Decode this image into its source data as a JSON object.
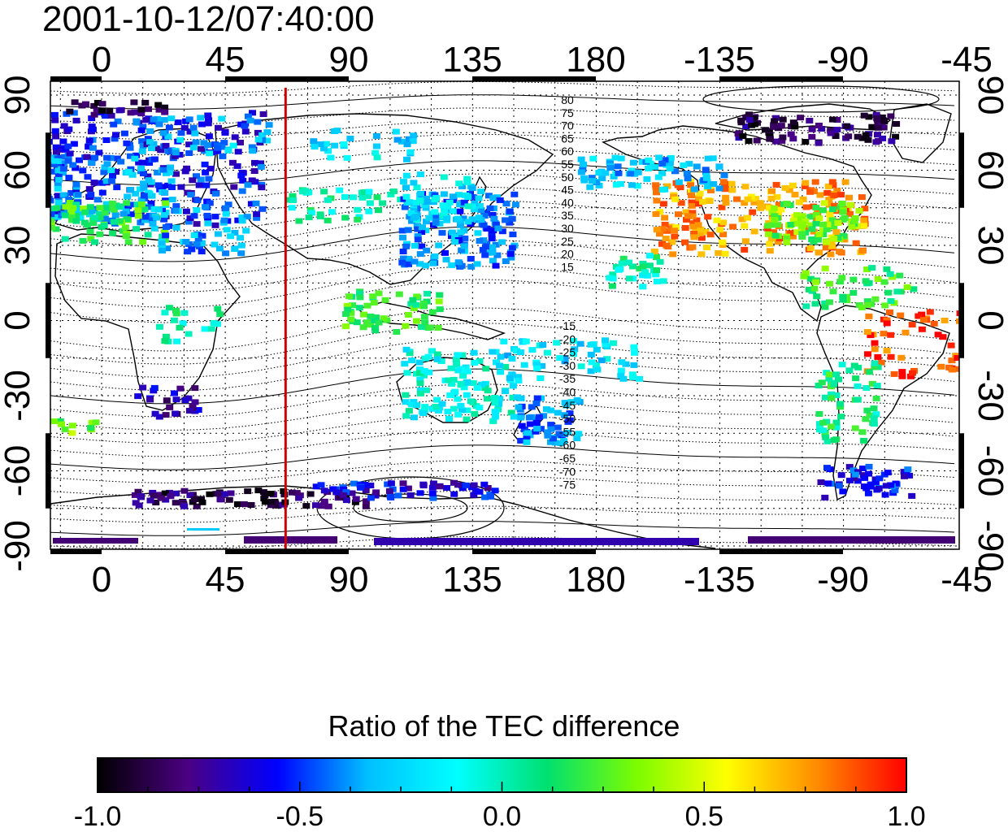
{
  "title": "2001-10-12/07:40:00",
  "map": {
    "x_ticks_top": [
      "0",
      "45",
      "90",
      "135",
      "180",
      "-135",
      "-90",
      "-45"
    ],
    "x_ticks_bottom": [
      "0",
      "45",
      "90",
      "135",
      "180",
      "-135",
      "-90",
      "-45"
    ],
    "y_ticks_left": [
      "90",
      "60",
      "30",
      "0",
      "-30",
      "-60",
      "-90"
    ],
    "y_ticks_right": [
      "90",
      "60",
      "30",
      "0",
      "-30",
      "-60",
      "-90"
    ],
    "marker_longitude": 67,
    "marker_color": "#cc0000",
    "north_contour_labels": [
      "80",
      "75",
      "70",
      "65",
      "60",
      "55",
      "50",
      "45",
      "40",
      "35",
      "30",
      "25",
      "20",
      "15"
    ],
    "south_contour_labels": [
      "-15",
      "-20",
      "-25",
      "-30",
      "-35",
      "-40",
      "-45",
      "-50",
      "-55",
      "-60",
      "-65",
      "-70",
      "-75"
    ]
  },
  "colorbar": {
    "title": "Ratio of the TEC difference",
    "tick_labels": [
      "-1.0",
      "-0.5",
      "0.0",
      "0.5",
      "1.0"
    ],
    "range": [
      -1.0,
      1.0
    ],
    "colors": [
      "#000000",
      "#4b0082",
      "#0000ff",
      "#00bfff",
      "#00ffff",
      "#00e070",
      "#7cfc00",
      "#ffff00",
      "#ff8c00",
      "#ff0000"
    ]
  }
}
